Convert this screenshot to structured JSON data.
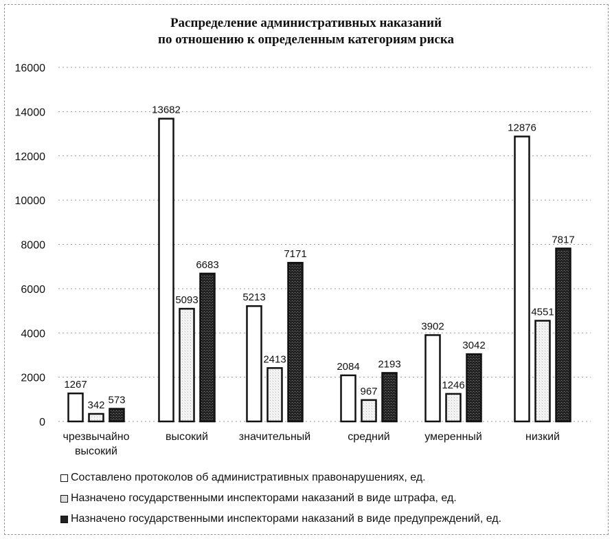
{
  "chart_data": {
    "type": "bar",
    "title": "Распределение административных наказаний по отношению к определенным категориям риска",
    "title_lines": [
      "Распределение административных наказаний",
      "по отношению к определенным категориям риска"
    ],
    "categories": [
      "чрезвычайно высокий",
      "высокий",
      "значительный",
      "средний",
      "умеренный",
      "низкий"
    ],
    "category_lines": [
      [
        "чрезвычайно",
        "высокий"
      ],
      [
        "высокий"
      ],
      [
        "значительный"
      ],
      [
        "средний"
      ],
      [
        "умеренный"
      ],
      [
        "низкий"
      ]
    ],
    "series": [
      {
        "name": "Составлено протоколов об административных правонарушениях, ед.",
        "values": [
          1267,
          13682,
          5213,
          2084,
          3902,
          12876
        ],
        "color": "#ffffff"
      },
      {
        "name": "Назначено государственными инспекторами наказаний в виде штрафа, ед.",
        "values": [
          342,
          5093,
          2413,
          967,
          1246,
          4551
        ],
        "color": "#e6e6e6"
      },
      {
        "name": "Назначено государственными инспекторами наказаний в виде предупреждений, ед.",
        "values": [
          573,
          6683,
          7171,
          2193,
          3042,
          7817
        ],
        "color": "#2a2a2a"
      }
    ],
    "yticks": [
      0,
      2000,
      4000,
      6000,
      8000,
      10000,
      12000,
      14000,
      16000
    ],
    "ylim": [
      0,
      16000
    ],
    "grid": true,
    "legend_position": "bottom",
    "xlabel": "",
    "ylabel": ""
  }
}
